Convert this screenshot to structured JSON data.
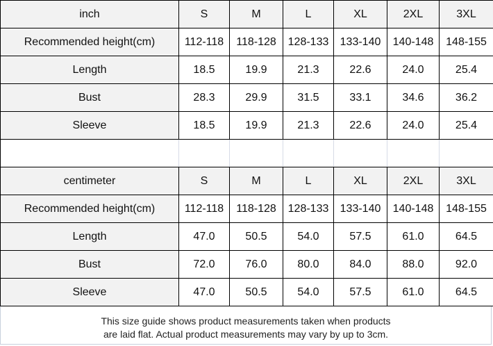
{
  "sizes": [
    "S",
    "M",
    "L",
    "XL",
    "2XL",
    "3XL"
  ],
  "inch": {
    "unit": "inch",
    "rows": [
      {
        "label": "Recommended height(cm)",
        "values": [
          "112-118",
          "118-128",
          "128-133",
          "133-140",
          "140-148",
          "148-155"
        ]
      },
      {
        "label": "Length",
        "values": [
          "18.5",
          "19.9",
          "21.3",
          "22.6",
          "24.0",
          "25.4"
        ]
      },
      {
        "label": "Bust",
        "values": [
          "28.3",
          "29.9",
          "31.5",
          "33.1",
          "34.6",
          "36.2"
        ]
      },
      {
        "label": "Sleeve",
        "values": [
          "18.5",
          "19.9",
          "21.3",
          "22.6",
          "24.0",
          "25.4"
        ]
      }
    ]
  },
  "centimeter": {
    "unit": "centimeter",
    "rows": [
      {
        "label": "Recommended height(cm)",
        "values": [
          "112-118",
          "118-128",
          "128-133",
          "133-140",
          "140-148",
          "148-155"
        ]
      },
      {
        "label": "Length",
        "values": [
          "47.0",
          "50.5",
          "54.0",
          "57.5",
          "61.0",
          "64.5"
        ]
      },
      {
        "label": "Bust",
        "values": [
          "72.0",
          "76.0",
          "80.0",
          "84.0",
          "88.0",
          "92.0"
        ]
      },
      {
        "label": "Sleeve",
        "values": [
          "47.0",
          "50.5",
          "54.0",
          "57.5",
          "61.0",
          "64.5"
        ]
      }
    ]
  },
  "footer": {
    "line1": "This size guide shows product measurements taken when products",
    "line2": "are laid flat. Actual product measurements may vary by up to 3cm."
  }
}
